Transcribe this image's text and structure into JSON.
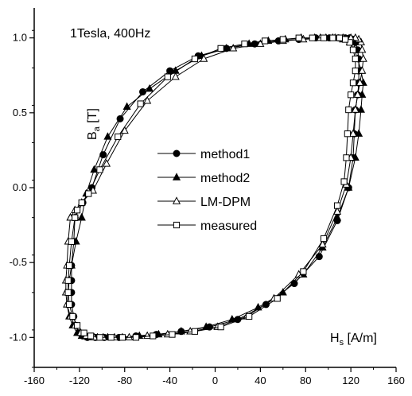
{
  "chart_data": {
    "type": "line",
    "annotation": "1Tesla, 400Hz",
    "xlabel": {
      "main": "H",
      "sub": "s",
      "unit": " [A/m]"
    },
    "ylabel": {
      "main": "B",
      "sub": "a",
      "unit": " [T]"
    },
    "xlim": [
      -160,
      160
    ],
    "ylim": [
      -1.2,
      1.2
    ],
    "x_ticks": [
      -160,
      -120,
      -80,
      -40,
      0,
      40,
      80,
      120,
      160
    ],
    "x_tick_labels": [
      "-160",
      "-120",
      "-80",
      "-40",
      "0",
      "40",
      "80",
      "120",
      "160"
    ],
    "y_ticks": [
      -1.0,
      -0.5,
      0.0,
      0.5,
      1.0
    ],
    "y_tick_labels": [
      "-1.0",
      "-0.5",
      "0.0",
      "0.5",
      "1.0"
    ],
    "grid": false,
    "legend_position": "center-left",
    "series": [
      {
        "name": "method1",
        "marker": "filled-circle",
        "x": [
          -124,
          -125,
          -127,
          -127,
          -127,
          -127,
          -125,
          -123,
          -120,
          -117,
          -113,
          -106,
          -98,
          -85,
          -70,
          -52,
          -30,
          -5,
          20,
          45,
          70,
          92,
          108,
          118,
          122,
          123,
          124,
          126,
          127,
          127,
          127,
          126,
          124,
          122,
          119,
          115,
          109,
          101,
          89,
          74,
          56,
          35,
          10,
          -15,
          -40,
          -64,
          -84,
          -99,
          -109,
          -117,
          -124
        ],
        "y": [
          -0.2,
          -0.36,
          -0.52,
          -0.62,
          -0.7,
          -0.78,
          -0.86,
          -0.92,
          -0.97,
          -0.99,
          -1.0,
          -1.0,
          -1.0,
          -1.0,
          -0.99,
          -0.98,
          -0.96,
          -0.93,
          -0.88,
          -0.78,
          -0.64,
          -0.46,
          -0.22,
          0.0,
          0.2,
          0.36,
          0.52,
          0.62,
          0.7,
          0.78,
          0.86,
          0.92,
          0.97,
          0.99,
          1.0,
          1.0,
          1.0,
          1.0,
          1.0,
          0.99,
          0.98,
          0.96,
          0.93,
          0.88,
          0.78,
          0.64,
          0.46,
          0.22,
          0.0,
          -0.1,
          -0.2
        ]
      },
      {
        "name": "method2",
        "marker": "filled-triangle",
        "x": [
          -118,
          -123,
          -127,
          -129,
          -130,
          -131,
          -129,
          -126,
          -122,
          -118,
          -112,
          -104,
          -95,
          -82,
          -67,
          -50,
          -30,
          -8,
          15,
          38,
          60,
          78,
          95,
          108,
          118,
          124,
          127,
          129,
          130,
          131,
          129,
          126,
          123,
          119,
          113,
          106,
          98,
          88,
          76,
          62,
          47,
          30,
          10,
          -12,
          -35,
          -58,
          -78,
          -95,
          -107,
          -114,
          -118
        ],
        "y": [
          -0.2,
          -0.36,
          -0.52,
          -0.62,
          -0.7,
          -0.78,
          -0.86,
          -0.92,
          -0.97,
          -0.99,
          -1.0,
          -1.0,
          -1.0,
          -1.0,
          -0.99,
          -0.98,
          -0.96,
          -0.93,
          -0.88,
          -0.8,
          -0.7,
          -0.58,
          -0.4,
          -0.2,
          0.0,
          0.2,
          0.36,
          0.52,
          0.62,
          0.7,
          0.78,
          0.86,
          0.92,
          0.97,
          0.99,
          1.0,
          1.0,
          1.0,
          1.0,
          0.99,
          0.98,
          0.96,
          0.93,
          0.88,
          0.78,
          0.66,
          0.54,
          0.34,
          0.12,
          -0.04,
          -0.2
        ]
      },
      {
        "name": "LM-DPM",
        "marker": "open-triangle",
        "x": [
          -128,
          -130,
          -131,
          -132,
          -132,
          -131,
          -128,
          -124,
          -119,
          -114,
          -107,
          -99,
          -89,
          -76,
          -60,
          -42,
          -22,
          2,
          28,
          52,
          74,
          95,
          108,
          116,
          120,
          122,
          124,
          126,
          128,
          130,
          131,
          130,
          129,
          127,
          124,
          120,
          113,
          104,
          93,
          78,
          60,
          40,
          16,
          -10,
          -35,
          -60,
          -80,
          -96,
          -108,
          -118,
          -124,
          -128
        ],
        "y": [
          -0.2,
          -0.36,
          -0.52,
          -0.62,
          -0.7,
          -0.78,
          -0.86,
          -0.92,
          -0.97,
          -0.99,
          -1.0,
          -1.0,
          -1.0,
          -1.0,
          -0.99,
          -0.98,
          -0.96,
          -0.93,
          -0.86,
          -0.74,
          -0.58,
          -0.38,
          -0.16,
          0.02,
          0.2,
          0.36,
          0.52,
          0.62,
          0.7,
          0.78,
          0.86,
          0.92,
          0.97,
          0.99,
          1.0,
          1.0,
          1.0,
          1.0,
          1.0,
          0.99,
          0.98,
          0.96,
          0.93,
          0.86,
          0.74,
          0.58,
          0.38,
          0.16,
          -0.02,
          -0.1,
          -0.15,
          -0.2
        ]
      },
      {
        "name": "measured",
        "marker": "open-square",
        "x": [
          -124,
          -127,
          -129,
          -130,
          -130,
          -129,
          -126,
          -122,
          -116,
          -110,
          -102,
          -92,
          -82,
          -70,
          -55,
          -38,
          -18,
          5,
          30,
          55,
          78,
          96,
          108,
          114,
          116,
          117,
          118,
          120,
          122,
          124,
          124,
          122,
          119,
          115,
          110,
          104,
          96,
          86,
          74,
          60,
          44,
          26,
          5,
          -18,
          -42,
          -66,
          -86,
          -102,
          -112,
          -118,
          -122,
          -124
        ],
        "y": [
          -0.2,
          -0.36,
          -0.52,
          -0.62,
          -0.7,
          -0.78,
          -0.86,
          -0.92,
          -0.97,
          -0.99,
          -1.0,
          -1.0,
          -1.0,
          -1.0,
          -0.99,
          -0.98,
          -0.96,
          -0.93,
          -0.86,
          -0.74,
          -0.56,
          -0.34,
          -0.12,
          0.04,
          0.2,
          0.36,
          0.52,
          0.62,
          0.7,
          0.78,
          0.86,
          0.92,
          0.97,
          0.99,
          1.0,
          1.0,
          1.0,
          1.0,
          1.0,
          0.99,
          0.98,
          0.96,
          0.93,
          0.86,
          0.74,
          0.56,
          0.34,
          0.12,
          -0.04,
          -0.1,
          -0.15,
          -0.2
        ]
      }
    ]
  }
}
